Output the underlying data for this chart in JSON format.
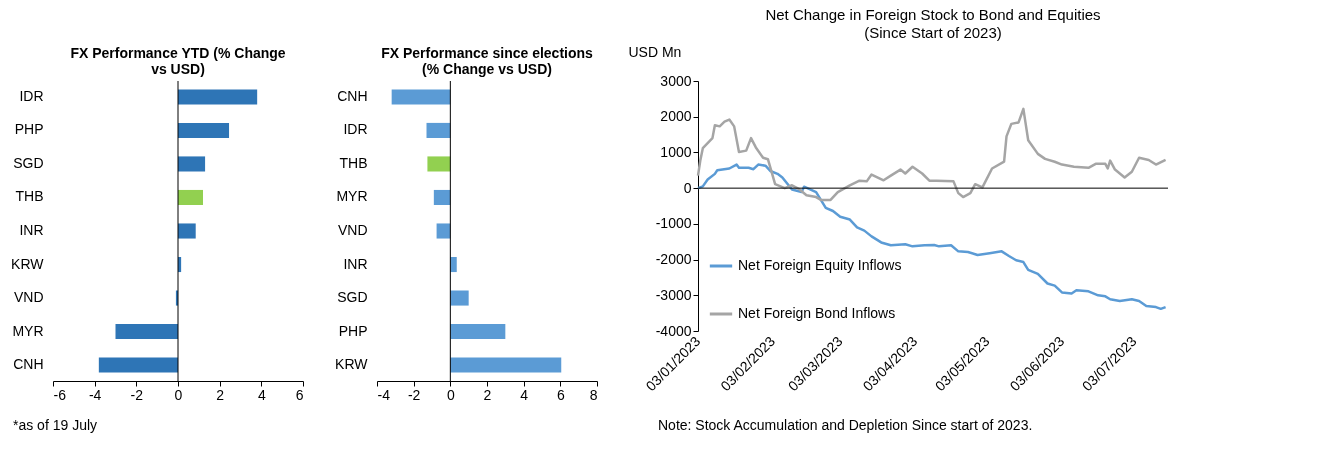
{
  "chart_data": [
    {
      "type": "bar",
      "orientation": "horizontal",
      "title": "FX Performance YTD (% Change vs USD)",
      "categories": [
        "IDR",
        "PHP",
        "SGD",
        "THB",
        "INR",
        "KRW",
        "VND",
        "MYR",
        "CNH"
      ],
      "values": [
        3.8,
        2.45,
        1.3,
        1.2,
        0.85,
        0.15,
        -0.1,
        -3.0,
        -3.8
      ],
      "colors": [
        "#2e75b6",
        "#2e75b6",
        "#2e75b6",
        "#92d050",
        "#2e75b6",
        "#2e75b6",
        "#2e75b6",
        "#2e75b6",
        "#2e75b6"
      ],
      "xlim": [
        -6,
        6
      ],
      "xticks": [
        -6,
        -4,
        -2,
        0,
        2,
        4,
        6
      ],
      "ref_lines": [
        {
          "axis": "x",
          "value": 0,
          "color": "#000000"
        }
      ],
      "annotations": [
        "*as of 19 July"
      ]
    },
    {
      "type": "bar",
      "orientation": "horizontal",
      "title": "FX Performance since elections (% Change vs USD)",
      "categories": [
        "CNH",
        "IDR",
        "THB",
        "MYR",
        "VND",
        "INR",
        "SGD",
        "PHP",
        "KRW"
      ],
      "values": [
        -3.2,
        -1.3,
        -1.25,
        -0.9,
        -0.75,
        0.35,
        1.0,
        3.0,
        6.05
      ],
      "colors": [
        "#5b9bd5",
        "#5b9bd5",
        "#92d050",
        "#5b9bd5",
        "#5b9bd5",
        "#5b9bd5",
        "#5b9bd5",
        "#5b9bd5",
        "#5b9bd5"
      ],
      "xlim": [
        -4,
        8
      ],
      "xticks": [
        -4,
        -2,
        0,
        2,
        4,
        6,
        8
      ],
      "ref_lines": [
        {
          "axis": "x",
          "value": 0,
          "color": "#000000"
        }
      ]
    },
    {
      "type": "line",
      "title": "Net Change in Foreign Stock  to Bond and Equities",
      "subtitle": "(Since Start of 2023)",
      "ylabel": "USD Mn",
      "ylim": [
        -4000,
        3000
      ],
      "yticks": [
        -4000,
        -3000,
        -2000,
        -1000,
        0,
        1000,
        2000,
        3000
      ],
      "xlim": [
        "2023-01-03",
        "2023-07-17"
      ],
      "xticks": [
        {
          "value": "2023-01-03",
          "label": "03/01/2023"
        },
        {
          "value": "2023-02-03",
          "label": "03/02/2023"
        },
        {
          "value": "2023-03-03",
          "label": "03/03/2023"
        },
        {
          "value": "2023-04-03",
          "label": "03/04/2023"
        },
        {
          "value": "2023-05-03",
          "label": "03/05/2023"
        },
        {
          "value": "2023-06-03",
          "label": "03/06/2023"
        },
        {
          "value": "2023-07-03",
          "label": "03/07/2023"
        }
      ],
      "grid": false,
      "legend": "bottom left",
      "marker": "none",
      "line_style": "solid",
      "ref_lines": [
        {
          "axis": "y",
          "value": 0,
          "color": "#000000"
        }
      ],
      "annotations": [
        "Note: Stock Accumulation and Depletion Since start of 2023."
      ],
      "series": [
        {
          "name": "Net Foreign Equity Inflows",
          "color": "#5b9bd5",
          "x": [
            "2023-01-03",
            "2023-01-05",
            "2023-01-07",
            "2023-01-10",
            "2023-01-11",
            "2023-01-16",
            "2023-01-19",
            "2023-01-20",
            "2023-01-24",
            "2023-01-26",
            "2023-01-28",
            "2023-01-31",
            "2023-02-02",
            "2023-02-05",
            "2023-02-07",
            "2023-02-11",
            "2023-02-15",
            "2023-02-16",
            "2023-02-21",
            "2023-02-25",
            "2023-02-28",
            "2023-03-03",
            "2023-03-07",
            "2023-03-10",
            "2023-03-13",
            "2023-03-16",
            "2023-03-20",
            "2023-03-24",
            "2023-03-30",
            "2023-04-02",
            "2023-04-07",
            "2023-04-11",
            "2023-04-13",
            "2023-04-18",
            "2023-04-21",
            "2023-04-25",
            "2023-04-29",
            "2023-05-04",
            "2023-05-09",
            "2023-05-12",
            "2023-05-15",
            "2023-05-18",
            "2023-05-20",
            "2023-05-24",
            "2023-05-28",
            "2023-05-31",
            "2023-06-03",
            "2023-06-07",
            "2023-06-09",
            "2023-06-14",
            "2023-06-18",
            "2023-06-21",
            "2023-06-23",
            "2023-06-27",
            "2023-07-02",
            "2023-07-05",
            "2023-07-08",
            "2023-07-12",
            "2023-07-14",
            "2023-07-16"
          ],
          "values": [
            0,
            50,
            240,
            400,
            500,
            550,
            660,
            570,
            570,
            530,
            660,
            630,
            480,
            400,
            300,
            -40,
            -110,
            40,
            -110,
            -550,
            -640,
            -800,
            -880,
            -1100,
            -1190,
            -1350,
            -1520,
            -1600,
            -1570,
            -1630,
            -1600,
            -1590,
            -1630,
            -1600,
            -1770,
            -1790,
            -1870,
            -1820,
            -1770,
            -1900,
            -2020,
            -2070,
            -2290,
            -2400,
            -2670,
            -2730,
            -2920,
            -2950,
            -2860,
            -2890,
            -3000,
            -3030,
            -3110,
            -3160,
            -3110,
            -3160,
            -3300,
            -3330,
            -3380,
            -3330
          ]
        },
        {
          "name": "Net Foreign Bond Inflows",
          "color": "#a5a5a5",
          "x": [
            "2023-01-03",
            "2023-01-04",
            "2023-01-05",
            "2023-01-09",
            "2023-01-10",
            "2023-01-12",
            "2023-01-14",
            "2023-01-16",
            "2023-01-18",
            "2023-01-20",
            "2023-01-23",
            "2023-01-25",
            "2023-01-27",
            "2023-01-30",
            "2023-02-01",
            "2023-02-04",
            "2023-02-08",
            "2023-02-11",
            "2023-02-14",
            "2023-02-17",
            "2023-02-21",
            "2023-02-23",
            "2023-02-27",
            "2023-03-02",
            "2023-03-07",
            "2023-03-11",
            "2023-03-14",
            "2023-03-16",
            "2023-03-21",
            "2023-03-24",
            "2023-03-28",
            "2023-03-30",
            "2023-04-02",
            "2023-04-06",
            "2023-04-09",
            "2023-04-12",
            "2023-04-19",
            "2023-04-21",
            "2023-04-23",
            "2023-04-26",
            "2023-04-28",
            "2023-05-01",
            "2023-05-05",
            "2023-05-10",
            "2023-05-11",
            "2023-05-13",
            "2023-05-16",
            "2023-05-18",
            "2023-05-19",
            "2023-05-20",
            "2023-05-24",
            "2023-05-27",
            "2023-05-31",
            "2023-06-03",
            "2023-06-08",
            "2023-06-14",
            "2023-06-17",
            "2023-06-21",
            "2023-06-22",
            "2023-06-23",
            "2023-06-25",
            "2023-06-29",
            "2023-07-02",
            "2023-07-05",
            "2023-07-09",
            "2023-07-12",
            "2023-07-16"
          ],
          "values": [
            350,
            790,
            1120,
            1400,
            1760,
            1730,
            1860,
            1920,
            1730,
            1010,
            1050,
            1400,
            1140,
            850,
            810,
            110,
            0,
            80,
            -30,
            -200,
            -250,
            -330,
            -330,
            -110,
            80,
            210,
            190,
            380,
            220,
            350,
            520,
            410,
            600,
            410,
            210,
            210,
            190,
            -140,
            -250,
            -140,
            110,
            20,
            550,
            740,
            1450,
            1800,
            1840,
            2220,
            1780,
            1340,
            960,
            820,
            740,
            660,
            600,
            570,
            680,
            680,
            550,
            770,
            520,
            300,
            460,
            850,
            790,
            660,
            790
          ]
        }
      ]
    }
  ]
}
